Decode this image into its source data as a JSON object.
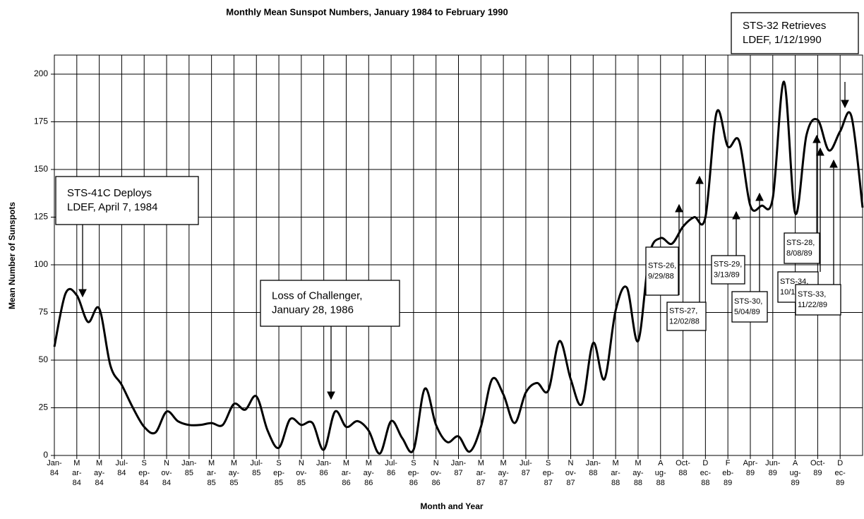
{
  "chart_data": {
    "type": "line",
    "title": "Monthly Mean Sunspot Numbers, January 1984 to February 1990",
    "x_label": "Month and Year",
    "y_label": "Mean Number of Sunspots",
    "categories": [
      [
        "Jan-",
        "84"
      ],
      null,
      [
        "M",
        "ar-",
        "84"
      ],
      null,
      [
        "M",
        "ay-",
        "84"
      ],
      null,
      [
        "Jul-",
        "84"
      ],
      null,
      [
        "S",
        "ep-",
        "84"
      ],
      null,
      [
        "N",
        "ov-",
        "84"
      ],
      null,
      [
        "Jan-",
        "85"
      ],
      null,
      [
        "M",
        "ar-",
        "85"
      ],
      null,
      [
        "M",
        "ay-",
        "85"
      ],
      null,
      [
        "Jul-",
        "85"
      ],
      null,
      [
        "S",
        "ep-",
        "85"
      ],
      null,
      [
        "N",
        "ov-",
        "85"
      ],
      null,
      [
        "Jan-",
        "86"
      ],
      null,
      [
        "M",
        "ar-",
        "86"
      ],
      null,
      [
        "M",
        "ay-",
        "86"
      ],
      null,
      [
        "Jul-",
        "86"
      ],
      null,
      [
        "S",
        "ep-",
        "86"
      ],
      null,
      [
        "N",
        "ov-",
        "86"
      ],
      null,
      [
        "Jan-",
        "87"
      ],
      null,
      [
        "M",
        "ar-",
        "87"
      ],
      null,
      [
        "M",
        "ay-",
        "87"
      ],
      null,
      [
        "Jul-",
        "87"
      ],
      null,
      [
        "S",
        "ep-",
        "87"
      ],
      null,
      [
        "N",
        "ov-",
        "87"
      ],
      null,
      [
        "Jan-",
        "88"
      ],
      null,
      [
        "M",
        "ar-",
        "88"
      ],
      null,
      [
        "M",
        "ay-",
        "88"
      ],
      null,
      [
        "A",
        "ug-",
        "88"
      ],
      null,
      [
        "Oct-",
        "88"
      ],
      null,
      [
        "D",
        "ec-",
        "88"
      ],
      null,
      [
        "F",
        "eb-",
        "89"
      ],
      null,
      [
        "Apr-",
        "89"
      ],
      null,
      [
        "Jun-",
        "89"
      ],
      null,
      [
        "A",
        "ug-",
        "89"
      ],
      null,
      [
        "Oct-",
        "89"
      ],
      null,
      [
        "D",
        "ec-",
        "89"
      ],
      null,
      null
    ],
    "series": [
      {
        "color": "#000000",
        "values": [
          57,
          85,
          84,
          70,
          77,
          47,
          37,
          25,
          15,
          12,
          23,
          18,
          16,
          16,
          17,
          16,
          27,
          24,
          31,
          13,
          4,
          19,
          16,
          17,
          3,
          23,
          15,
          18,
          13,
          1,
          18,
          9,
          3,
          35,
          16,
          7,
          10,
          2,
          15,
          40,
          32,
          17,
          33,
          38,
          34,
          60,
          40,
          27,
          59,
          40,
          76,
          88,
          60,
          105,
          114,
          111,
          120,
          125,
          125,
          180,
          162,
          165,
          131,
          131,
          135,
          196,
          127,
          168,
          176,
          160,
          170,
          178,
          130
        ]
      }
    ],
    "ylim": [
      0,
      210
    ],
    "yticks": [
      0,
      25,
      50,
      75,
      100,
      125,
      150,
      175,
      200
    ],
    "grid": true,
    "annotations": [
      {
        "lines": [
          "STS-41C Deploys",
          "LDEF, April 7, 1984"
        ]
      },
      {
        "lines": [
          "Loss of Challenger,",
          "January 28, 1986"
        ]
      },
      {
        "lines": [
          "STS-32 Retrieves",
          "LDEF, 1/12/1990"
        ]
      },
      {
        "lines": [
          "STS-26,",
          "9/29/88"
        ]
      },
      {
        "lines": [
          "STS-27,",
          "12/02/88"
        ]
      },
      {
        "lines": [
          "STS-29,",
          "3/13/89"
        ]
      },
      {
        "lines": [
          "STS-30,",
          "5/04/89"
        ]
      },
      {
        "lines": [
          "STS-28,",
          "8/08/89"
        ]
      },
      {
        "lines": [
          "STS-34,",
          "10/18/89"
        ]
      },
      {
        "lines": [
          "STS-33,",
          "11/22/89"
        ]
      }
    ]
  }
}
